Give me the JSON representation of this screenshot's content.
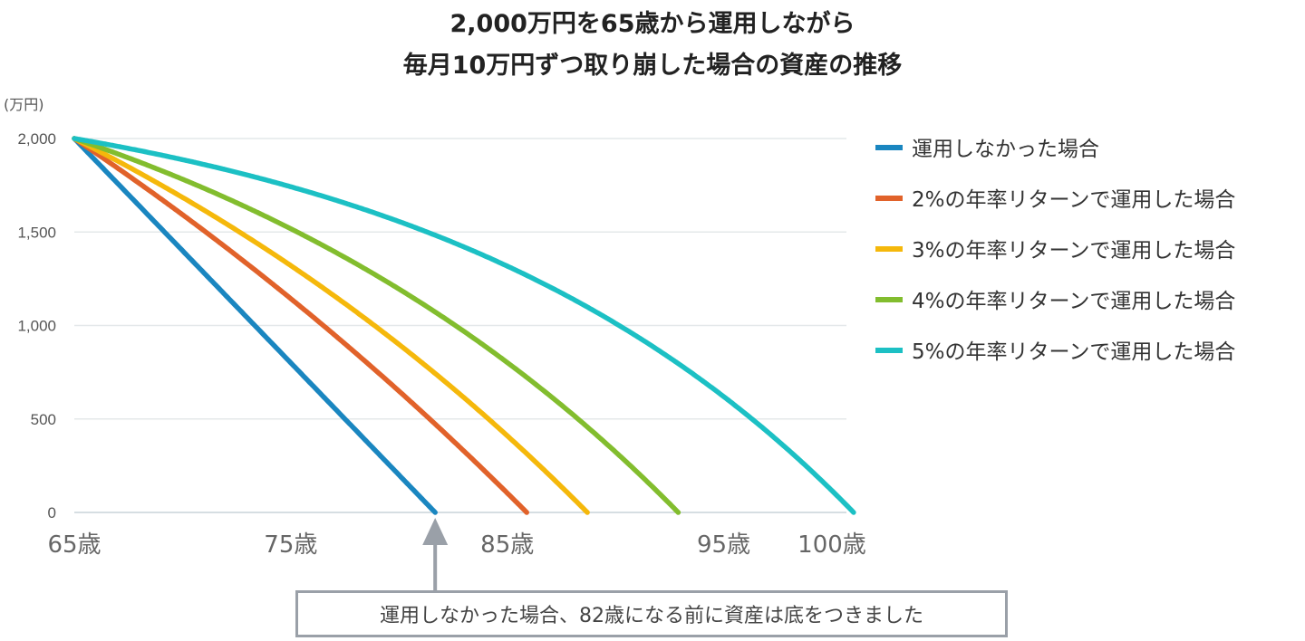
{
  "title": {
    "line1": "2,000万円を65歳から運用しながら",
    "line2": "毎月10万円ずつ取り崩した場合の資産の推移"
  },
  "annotation": {
    "text": "運用しなかった場合、82歳になる前に資産は底をつきました",
    "target_age": 81.67
  },
  "chart_data": {
    "type": "line",
    "title": "2,000万円を65歳から運用しながら毎月10万円ずつ取り崩した場合の資産の推移",
    "ylabel": "(万円)",
    "xlabel": "",
    "x_ticks": [
      {
        "value": 65,
        "label": "65歳"
      },
      {
        "value": 75,
        "label": "75歳"
      },
      {
        "value": 85,
        "label": "85歳"
      },
      {
        "value": 95,
        "label": "95歳"
      },
      {
        "value": 100,
        "label": "100歳"
      }
    ],
    "y_ticks": [
      {
        "value": 2000,
        "label": "2,000"
      },
      {
        "value": 1500,
        "label": "1,500"
      },
      {
        "value": 1000,
        "label": "1,000"
      },
      {
        "value": 500,
        "label": "500"
      },
      {
        "value": 0,
        "label": "0"
      }
    ],
    "xlim": [
      65,
      103.5
    ],
    "ylim": [
      0,
      2000
    ],
    "grid": true,
    "legend_position": "right",
    "initial_value": 2000,
    "monthly_withdrawal": 10,
    "series": [
      {
        "name": "運用しなかった場合",
        "color": "#1a86c0",
        "annual_return": 0.0,
        "depletion_age": 81.67
      },
      {
        "name": "2%の年率リターンで運用した場合",
        "color": "#e1622a",
        "annual_return": 0.02,
        "depletion_age": 85.9
      },
      {
        "name": "3%の年率リターンで運用した場合",
        "color": "#f5b80b",
        "annual_return": 0.03,
        "depletion_age": 88.7
      },
      {
        "name": "4%の年率リターンで運用した場合",
        "color": "#82bd2e",
        "annual_return": 0.04,
        "depletion_age": 92.9
      },
      {
        "name": "5%の年率リターンで運用した場合",
        "color": "#1cc0c4",
        "annual_return": 0.05,
        "depletion_age": 101.0
      }
    ]
  }
}
